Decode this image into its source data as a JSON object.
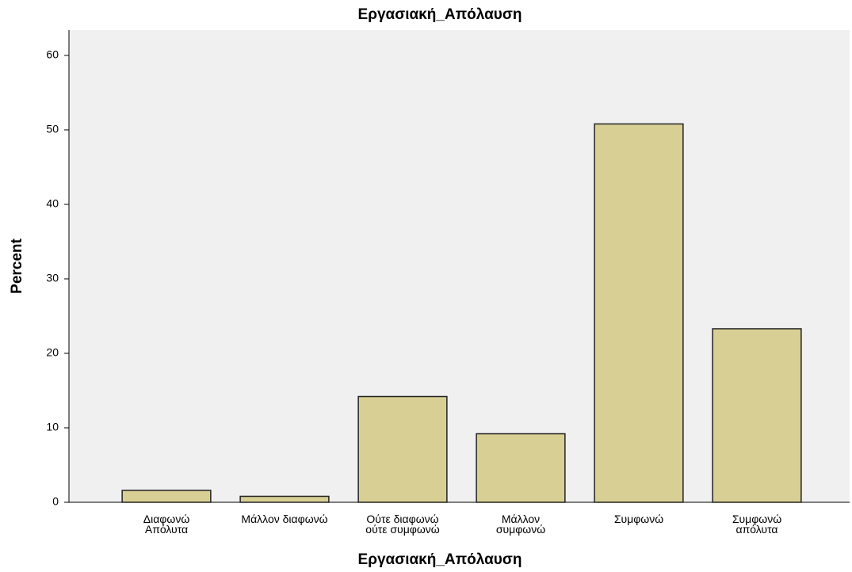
{
  "chart_data": {
    "type": "bar",
    "title": "Εργασιακή_Απόλαυση",
    "x_label": "Εργασιακή_Απόλαυση",
    "y_label": "Percent",
    "categories": [
      "Διαφωνώ\nΑπόλυτα",
      "Μάλλον διαφωνώ",
      "Ούτε διαφωνώ\nούτε συμφωνώ",
      "Μάλλον\nσυμφωνώ",
      "Συμφωνώ",
      "Συμφωνώ\nαπόλυτα"
    ],
    "values": [
      1.6,
      0.8,
      14.2,
      9.2,
      50.8,
      23.3
    ],
    "color": "#d8cf94",
    "ylim": [
      0,
      63.4
    ],
    "yticks": [
      0,
      10,
      20,
      30,
      40,
      50,
      60
    ],
    "grid": false
  }
}
